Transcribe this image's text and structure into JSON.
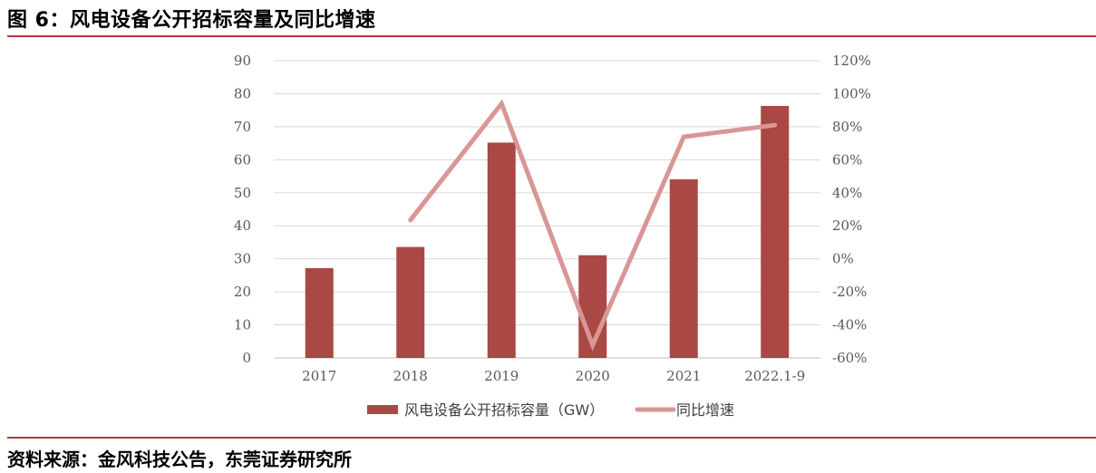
{
  "figure_title": "图 6：风电设备公开招标容量及同比增速",
  "source_note": "资料来源：金风科技公告，东莞证券研究所",
  "colors": {
    "bar": "#a94844",
    "line": "#d99695",
    "grid": "#d9d9d9",
    "rule": "#b5383c"
  },
  "chart_data": {
    "type": "bar",
    "title": "",
    "categories": [
      "2017",
      "2018",
      "2019",
      "2020",
      "2021",
      "2022.1-9"
    ],
    "series": [
      {
        "name": "风电设备公开招标容量（GW）",
        "type": "bar",
        "axis": "left",
        "values": [
          27.2,
          33.6,
          65.2,
          31.1,
          54.1,
          76.3
        ]
      },
      {
        "name": "同比增速",
        "type": "line",
        "axis": "right",
        "values": [
          null,
          23.5,
          94.0,
          -52.3,
          73.9,
          81.0
        ]
      }
    ],
    "y_left": {
      "ticks": [
        "0",
        "10",
        "20",
        "30",
        "40",
        "50",
        "60",
        "70",
        "80",
        "90"
      ],
      "ylim": [
        0,
        90
      ]
    },
    "y_right": {
      "ticks": [
        "-60%",
        "-40%",
        "-20%",
        "0%",
        "20%",
        "40%",
        "60%",
        "80%",
        "100%",
        "120%"
      ],
      "ylim": [
        -60,
        120
      ]
    },
    "grid": true,
    "legend": "bottom"
  }
}
